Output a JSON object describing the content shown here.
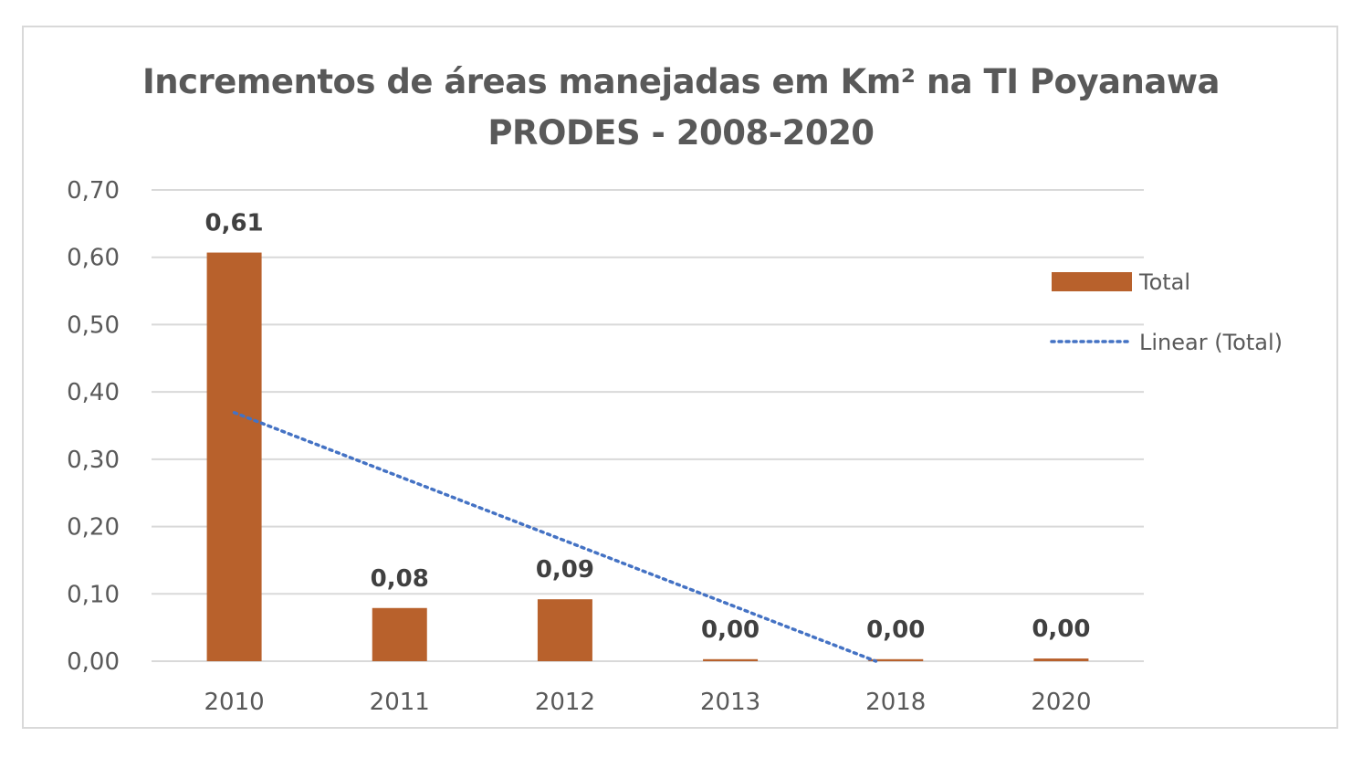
{
  "chart_data": {
    "type": "bar",
    "title": "Incrementos de áreas manejadas em Km² na TI Poyanawa",
    "subtitle": "PRODES - 2008-2020",
    "categories": [
      "2010",
      "2011",
      "2012",
      "2013",
      "2018",
      "2020"
    ],
    "series": [
      {
        "name": "Total",
        "values": [
          0.607,
          0.079,
          0.092,
          0.003,
          0.003,
          0.004
        ],
        "labels": [
          "0,61",
          "0,08",
          "0,09",
          "0,00",
          "0,00",
          "0,00"
        ],
        "color": "#b8612c"
      }
    ],
    "trendline": {
      "name": "Linear (Total)",
      "type": "linear",
      "color": "#4472c4",
      "style": "dotted"
    },
    "ylim": [
      0,
      0.7
    ],
    "yticks": [
      0,
      0.1,
      0.2,
      0.3,
      0.4,
      0.5,
      0.6,
      0.7
    ],
    "ytick_labels": [
      "0,00",
      "0,10",
      "0,20",
      "0,30",
      "0,40",
      "0,50",
      "0,60",
      "0,70"
    ],
    "grid": true,
    "legend_position": "right",
    "xlabel": "",
    "ylabel": ""
  }
}
